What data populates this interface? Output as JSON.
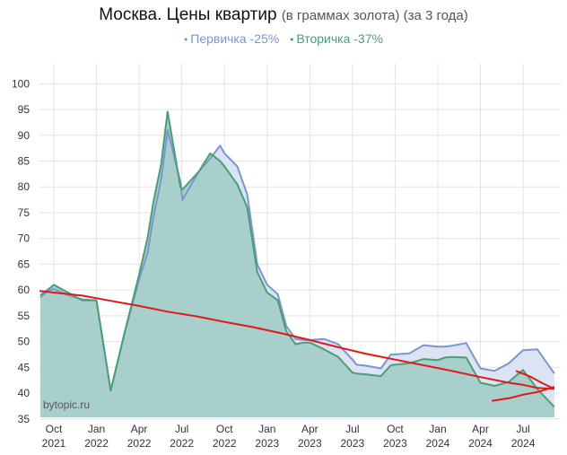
{
  "chart_data": {
    "type": "area",
    "title": "Москва. Цены квартир",
    "subtitle": "(в граммах золота) (за 3 года)",
    "xlabel": "",
    "ylabel": "",
    "ylim": [
      35,
      100
    ],
    "y_ticks": [
      35,
      40,
      45,
      50,
      55,
      60,
      65,
      70,
      75,
      80,
      85,
      90,
      95,
      100
    ],
    "grid": true,
    "legend_position": "top-center",
    "x_ticks": [
      {
        "line1": "Oct",
        "line2": "2021",
        "t": 0
      },
      {
        "line1": "Jan",
        "line2": "2022",
        "t": 3
      },
      {
        "line1": "Apr",
        "line2": "2022",
        "t": 6
      },
      {
        "line1": "Jul",
        "line2": "2022",
        "t": 9
      },
      {
        "line1": "Oct",
        "line2": "2022",
        "t": 12
      },
      {
        "line1": "Jan",
        "line2": "2023",
        "t": 15
      },
      {
        "line1": "Apr",
        "line2": "2023",
        "t": 18
      },
      {
        "line1": "Jul",
        "line2": "2023",
        "t": 21
      },
      {
        "line1": "Oct",
        "line2": "2023",
        "t": 24
      },
      {
        "line1": "Jan",
        "line2": "2024",
        "t": 27
      },
      {
        "line1": "Apr",
        "line2": "2024",
        "t": 30
      },
      {
        "line1": "Jul",
        "line2": "2024",
        "t": 33
      }
    ],
    "x_range": [
      -1,
      35.2
    ],
    "series": [
      {
        "name": "Первичка -25%",
        "color": "#7b96cf",
        "fill": "#dce3f3",
        "x": [
          -0.95,
          -0.45,
          0,
          1,
          2,
          3,
          4,
          5,
          6,
          6.6,
          7,
          7.55,
          8,
          8.9,
          9.05,
          10.2,
          11,
          11.7,
          12,
          12.9,
          13.6,
          14.3,
          15,
          15.75,
          16.35,
          17,
          17.6,
          18,
          19,
          20,
          21,
          21.3,
          22,
          23,
          23.7,
          24,
          25,
          26,
          27,
          27.5,
          28,
          29,
          30,
          31,
          32,
          33,
          34,
          35.2
        ],
        "values": [
          58.5,
          59.8,
          60.2,
          59,
          58.2,
          58,
          40.5,
          52,
          62,
          67.3,
          74,
          81.5,
          91,
          81,
          77.5,
          83,
          85.5,
          88,
          86.5,
          84,
          78.5,
          65,
          61,
          59.2,
          53,
          50.5,
          50.3,
          50.3,
          50.5,
          49.5,
          46.5,
          45.5,
          45.3,
          44.8,
          47.5,
          47.5,
          47.7,
          49.3,
          49,
          49,
          49.2,
          49.7,
          44.8,
          44.3,
          45.8,
          48.3,
          48.5,
          43.8
        ]
      },
      {
        "name": "Вторичка -37%",
        "color": "#4a9e77",
        "fill": "#a8cfcb",
        "x": [
          -0.95,
          -0.45,
          0,
          1,
          2,
          3,
          4,
          5,
          6,
          6.6,
          7,
          7.55,
          8,
          8.9,
          9.05,
          10.2,
          11,
          11.7,
          12,
          12.9,
          13.6,
          14.3,
          15,
          15.75,
          16.35,
          17,
          17.6,
          18,
          19,
          20,
          21,
          21.3,
          22,
          23,
          23.7,
          24,
          25,
          26,
          27,
          27.5,
          28,
          29,
          30,
          31,
          32,
          33,
          34,
          35.2
        ],
        "values": [
          59,
          60,
          61,
          59.5,
          58,
          58,
          40.5,
          52,
          63,
          70.2,
          77,
          84.5,
          94.6,
          80,
          79.5,
          83,
          86.5,
          85,
          84,
          80.5,
          76,
          63.5,
          59.5,
          58,
          52,
          49.5,
          49.8,
          49.8,
          48.5,
          47,
          44,
          43.8,
          43.6,
          43.3,
          45.4,
          45.5,
          45.8,
          46.6,
          46.4,
          46.9,
          47,
          46.9,
          42,
          41.4,
          42.2,
          44.5,
          40.8,
          37.3
        ]
      }
    ],
    "trend_lines": [
      {
        "color": "#dd1a1a",
        "x": [
          -1,
          0,
          2,
          4,
          6,
          8,
          10,
          12,
          14,
          16,
          18,
          20,
          22,
          24,
          26,
          28,
          30,
          32,
          33,
          34,
          35.2
        ],
        "values": [
          59.8,
          59.5,
          58.9,
          57.9,
          56.9,
          55.8,
          54.9,
          53.8,
          52.8,
          51.6,
          50.3,
          48.9,
          47.6,
          46.5,
          45.4,
          44.3,
          43.1,
          42,
          41.6,
          41,
          40.8
        ]
      },
      {
        "color": "#dd1a1a",
        "x": [
          30.8,
          32,
          33,
          34,
          35.2
        ],
        "values": [
          38.5,
          39,
          39.7,
          40.2,
          41.2
        ]
      },
      {
        "color": "#dd1a1a",
        "x": [
          32.5,
          33.5,
          34.3,
          35.2
        ],
        "values": [
          44.3,
          43.2,
          42,
          40.8
        ]
      }
    ],
    "watermark": "bytopic.ru"
  }
}
